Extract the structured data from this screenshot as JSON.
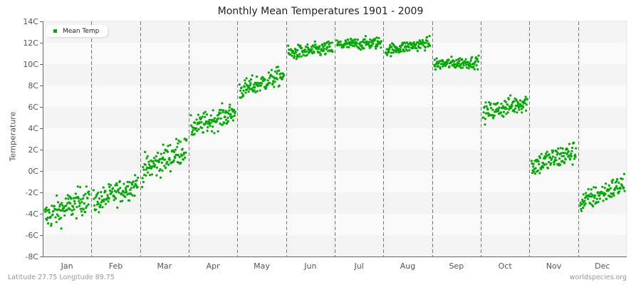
{
  "chart_data": {
    "type": "scatter",
    "title": "Monthly Mean Temperatures 1901 - 2009",
    "xlabel": "",
    "ylabel": "Temperature",
    "ylim": [
      -8,
      14
    ],
    "yticks": [
      "14C",
      "12C",
      "10C",
      "8C",
      "6C",
      "4C",
      "2C",
      "0C",
      "-2C",
      "-4C",
      "-6C",
      "-8C"
    ],
    "categories": [
      "Jan",
      "Feb",
      "Mar",
      "Apr",
      "May",
      "Jun",
      "Jul",
      "Aug",
      "Sep",
      "Oct",
      "Nov",
      "Dec"
    ],
    "legend": [
      {
        "name": "Mean Temp",
        "color": "#00aa00"
      }
    ],
    "series": [
      {
        "name": "Mean Temp",
        "points_per_month": 109,
        "monthly_summary": [
          {
            "month": "Jan",
            "start": -4.3,
            "end": -2.5,
            "spread": 1.2,
            "min": -7.2,
            "max": -0.3
          },
          {
            "month": "Feb",
            "start": -3.0,
            "end": -1.2,
            "spread": 1.0,
            "min": -4.8,
            "max": 0.5
          },
          {
            "month": "Mar",
            "start": 0.0,
            "end": 2.2,
            "spread": 1.2,
            "min": -1.5,
            "max": 3.0
          },
          {
            "month": "Apr",
            "start": 4.0,
            "end": 5.5,
            "spread": 0.9,
            "min": 3.2,
            "max": 7.0
          },
          {
            "month": "May",
            "start": 7.5,
            "end": 9.0,
            "spread": 0.8,
            "min": 6.5,
            "max": 10.3
          },
          {
            "month": "Jun",
            "start": 11.0,
            "end": 11.5,
            "spread": 0.6,
            "min": 10.3,
            "max": 13.1
          },
          {
            "month": "Jul",
            "start": 11.8,
            "end": 12.0,
            "spread": 0.5,
            "min": 10.8,
            "max": 13.6
          },
          {
            "month": "Aug",
            "start": 11.3,
            "end": 12.0,
            "spread": 0.5,
            "min": 10.6,
            "max": 12.9
          },
          {
            "month": "Sep",
            "start": 10.0,
            "end": 10.2,
            "spread": 0.5,
            "min": 8.9,
            "max": 11.9
          },
          {
            "month": "Oct",
            "start": 5.4,
            "end": 6.5,
            "spread": 0.8,
            "min": 3.5,
            "max": 8.2
          },
          {
            "month": "Nov",
            "start": 0.5,
            "end": 1.8,
            "spread": 1.0,
            "min": -2.0,
            "max": 3.8
          },
          {
            "month": "Dec",
            "start": -3.0,
            "end": -1.2,
            "spread": 0.9,
            "min": -5.0,
            "max": -0.2
          }
        ]
      }
    ],
    "grid": "horizontal bands",
    "legend_position": "top-left"
  },
  "footer": {
    "location": "Latitude 27.75 Longitude 89.75",
    "source": "worldspecies.org"
  },
  "colors": {
    "point": "#00aa00",
    "band_dark": "#f4f4f4",
    "band_light": "#fafafa",
    "divider": "#777777"
  }
}
